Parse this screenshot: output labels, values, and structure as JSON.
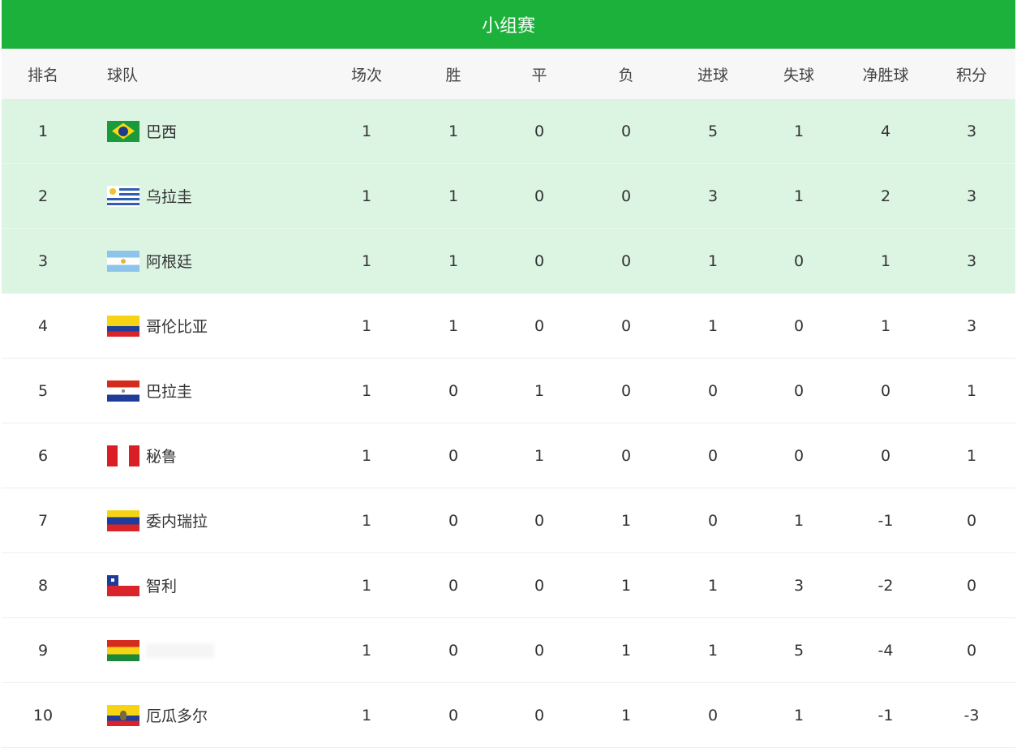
{
  "title": "小组赛",
  "columns": [
    "排名",
    "球队",
    "场次",
    "胜",
    "平",
    "负",
    "进球",
    "失球",
    "净胜球",
    "积分"
  ],
  "accent": "#1bb13b",
  "qualified_bg": "#dcf4e2",
  "rows": [
    {
      "rank": "1",
      "team": "巴西",
      "flag": "brazil-flag",
      "stats": [
        "1",
        "1",
        "0",
        "0",
        "5",
        "1",
        "4",
        "3"
      ],
      "q": true
    },
    {
      "rank": "2",
      "team": "乌拉圭",
      "flag": "uruguay-flag",
      "stats": [
        "1",
        "1",
        "0",
        "0",
        "3",
        "1",
        "2",
        "3"
      ],
      "q": true
    },
    {
      "rank": "3",
      "team": "阿根廷",
      "flag": "argentina-flag",
      "stats": [
        "1",
        "1",
        "0",
        "0",
        "1",
        "0",
        "1",
        "3"
      ],
      "q": true
    },
    {
      "rank": "4",
      "team": "哥伦比亚",
      "flag": "colombia-flag",
      "stats": [
        "1",
        "1",
        "0",
        "0",
        "1",
        "0",
        "1",
        "3"
      ]
    },
    {
      "rank": "5",
      "team": "巴拉圭",
      "flag": "paraguay-flag",
      "stats": [
        "1",
        "0",
        "1",
        "0",
        "0",
        "0",
        "0",
        "1"
      ]
    },
    {
      "rank": "6",
      "team": "秘鲁",
      "flag": "peru-flag",
      "stats": [
        "1",
        "0",
        "1",
        "0",
        "0",
        "0",
        "0",
        "1"
      ]
    },
    {
      "rank": "7",
      "team": "委内瑞拉",
      "flag": "venezuela-flag",
      "stats": [
        "1",
        "0",
        "0",
        "1",
        "0",
        "1",
        "-1",
        "0"
      ]
    },
    {
      "rank": "8",
      "team": "智利",
      "flag": "chile-flag",
      "stats": [
        "1",
        "0",
        "0",
        "1",
        "1",
        "3",
        "-2",
        "0"
      ]
    },
    {
      "rank": "9",
      "team": "",
      "flag": "bolivia-flag",
      "stats": [
        "1",
        "0",
        "0",
        "1",
        "1",
        "5",
        "-4",
        "0"
      ]
    },
    {
      "rank": "10",
      "team": "厄瓜多尔",
      "flag": "ecuador-flag",
      "stats": [
        "1",
        "0",
        "0",
        "1",
        "0",
        "1",
        "-1",
        "-3"
      ]
    }
  ]
}
